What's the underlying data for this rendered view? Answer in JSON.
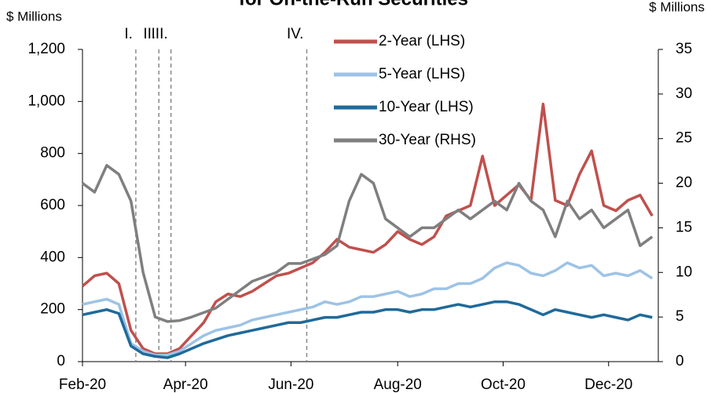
{
  "chart_data": {
    "type": "line",
    "title": "for On-the-Run Securities",
    "y_label": "$ Millions",
    "y2_label": "$ Millions",
    "x": [
      0,
      1,
      2,
      3,
      4,
      5,
      6,
      7,
      8,
      9,
      10,
      11,
      12,
      13,
      14,
      15,
      16,
      17,
      18,
      19,
      20,
      21,
      22,
      23,
      24,
      25,
      26,
      27,
      28,
      29,
      30,
      31,
      32,
      33,
      34,
      35,
      36,
      37,
      38,
      39,
      40,
      41,
      42,
      43,
      44,
      45,
      46,
      47
    ],
    "xlim": [
      0,
      47.5
    ],
    "xticks": [
      {
        "value": 0,
        "label": "Feb-20"
      },
      {
        "value": 8.5,
        "label": "Apr-20"
      },
      {
        "value": 17.2,
        "label": "Jun-20"
      },
      {
        "value": 26,
        "label": "Aug-20"
      },
      {
        "value": 34.7,
        "label": "Oct-20"
      },
      {
        "value": 43.4,
        "label": "Dec-20"
      }
    ],
    "ylim": [
      0,
      1200
    ],
    "yticks": [
      0,
      200,
      400,
      600,
      800,
      {
        "value": 1000,
        "label": "1,000"
      },
      {
        "value": 1200,
        "label": "1,200"
      }
    ],
    "y2lim": [
      0,
      35
    ],
    "y2ticks": [
      0,
      5,
      10,
      15,
      20,
      25,
      30,
      35
    ],
    "annotations": [
      {
        "label": "I.",
        "x": 4.4
      },
      {
        "label": "II.",
        "x": 6.3
      },
      {
        "label": "III.",
        "x": 7.3
      },
      {
        "label": "IV.",
        "x": 18.5
      }
    ],
    "series": [
      {
        "name": "2-Year (LHS)",
        "color": "#c0504d",
        "values": [
          290,
          330,
          340,
          300,
          120,
          50,
          30,
          30,
          50,
          100,
          150,
          230,
          260,
          250,
          270,
          300,
          330,
          340,
          360,
          380,
          420,
          470,
          440,
          430,
          420,
          450,
          500,
          470,
          450,
          480,
          560,
          580,
          600,
          790,
          600,
          640,
          680,
          620,
          990,
          620,
          600,
          720,
          810,
          600,
          580,
          620,
          640,
          560
        ]
      },
      {
        "name": "5-Year (LHS)",
        "color": "#9dc3e6",
        "values": [
          220,
          230,
          240,
          220,
          70,
          40,
          25,
          25,
          40,
          70,
          100,
          120,
          130,
          140,
          160,
          170,
          180,
          190,
          200,
          210,
          230,
          220,
          230,
          250,
          250,
          260,
          270,
          250,
          260,
          280,
          280,
          300,
          300,
          320,
          360,
          380,
          370,
          340,
          330,
          350,
          380,
          360,
          370,
          330,
          340,
          330,
          350,
          320
        ]
      },
      {
        "name": "10-Year (LHS)",
        "color": "#1f6a9a",
        "values": [
          180,
          190,
          200,
          185,
          60,
          30,
          20,
          15,
          30,
          50,
          70,
          85,
          100,
          110,
          120,
          130,
          140,
          150,
          150,
          160,
          170,
          170,
          180,
          190,
          190,
          200,
          200,
          190,
          200,
          200,
          210,
          220,
          210,
          220,
          230,
          230,
          220,
          200,
          180,
          200,
          190,
          180,
          170,
          180,
          170,
          160,
          180,
          170
        ]
      },
      {
        "name": "30-Year (RHS)",
        "color": "#7f7f80",
        "axis": "y2",
        "values": [
          20,
          19,
          22,
          21,
          18,
          10,
          5,
          4.5,
          4.6,
          5,
          5.5,
          6,
          7,
          8,
          9,
          9.5,
          10,
          11,
          11,
          11.5,
          12,
          13,
          18,
          21,
          20,
          16,
          15,
          14,
          15,
          15,
          16,
          17,
          16,
          17,
          18,
          17,
          20,
          18,
          17,
          14,
          18,
          16,
          17,
          15,
          16,
          17,
          13,
          14
        ]
      }
    ]
  }
}
